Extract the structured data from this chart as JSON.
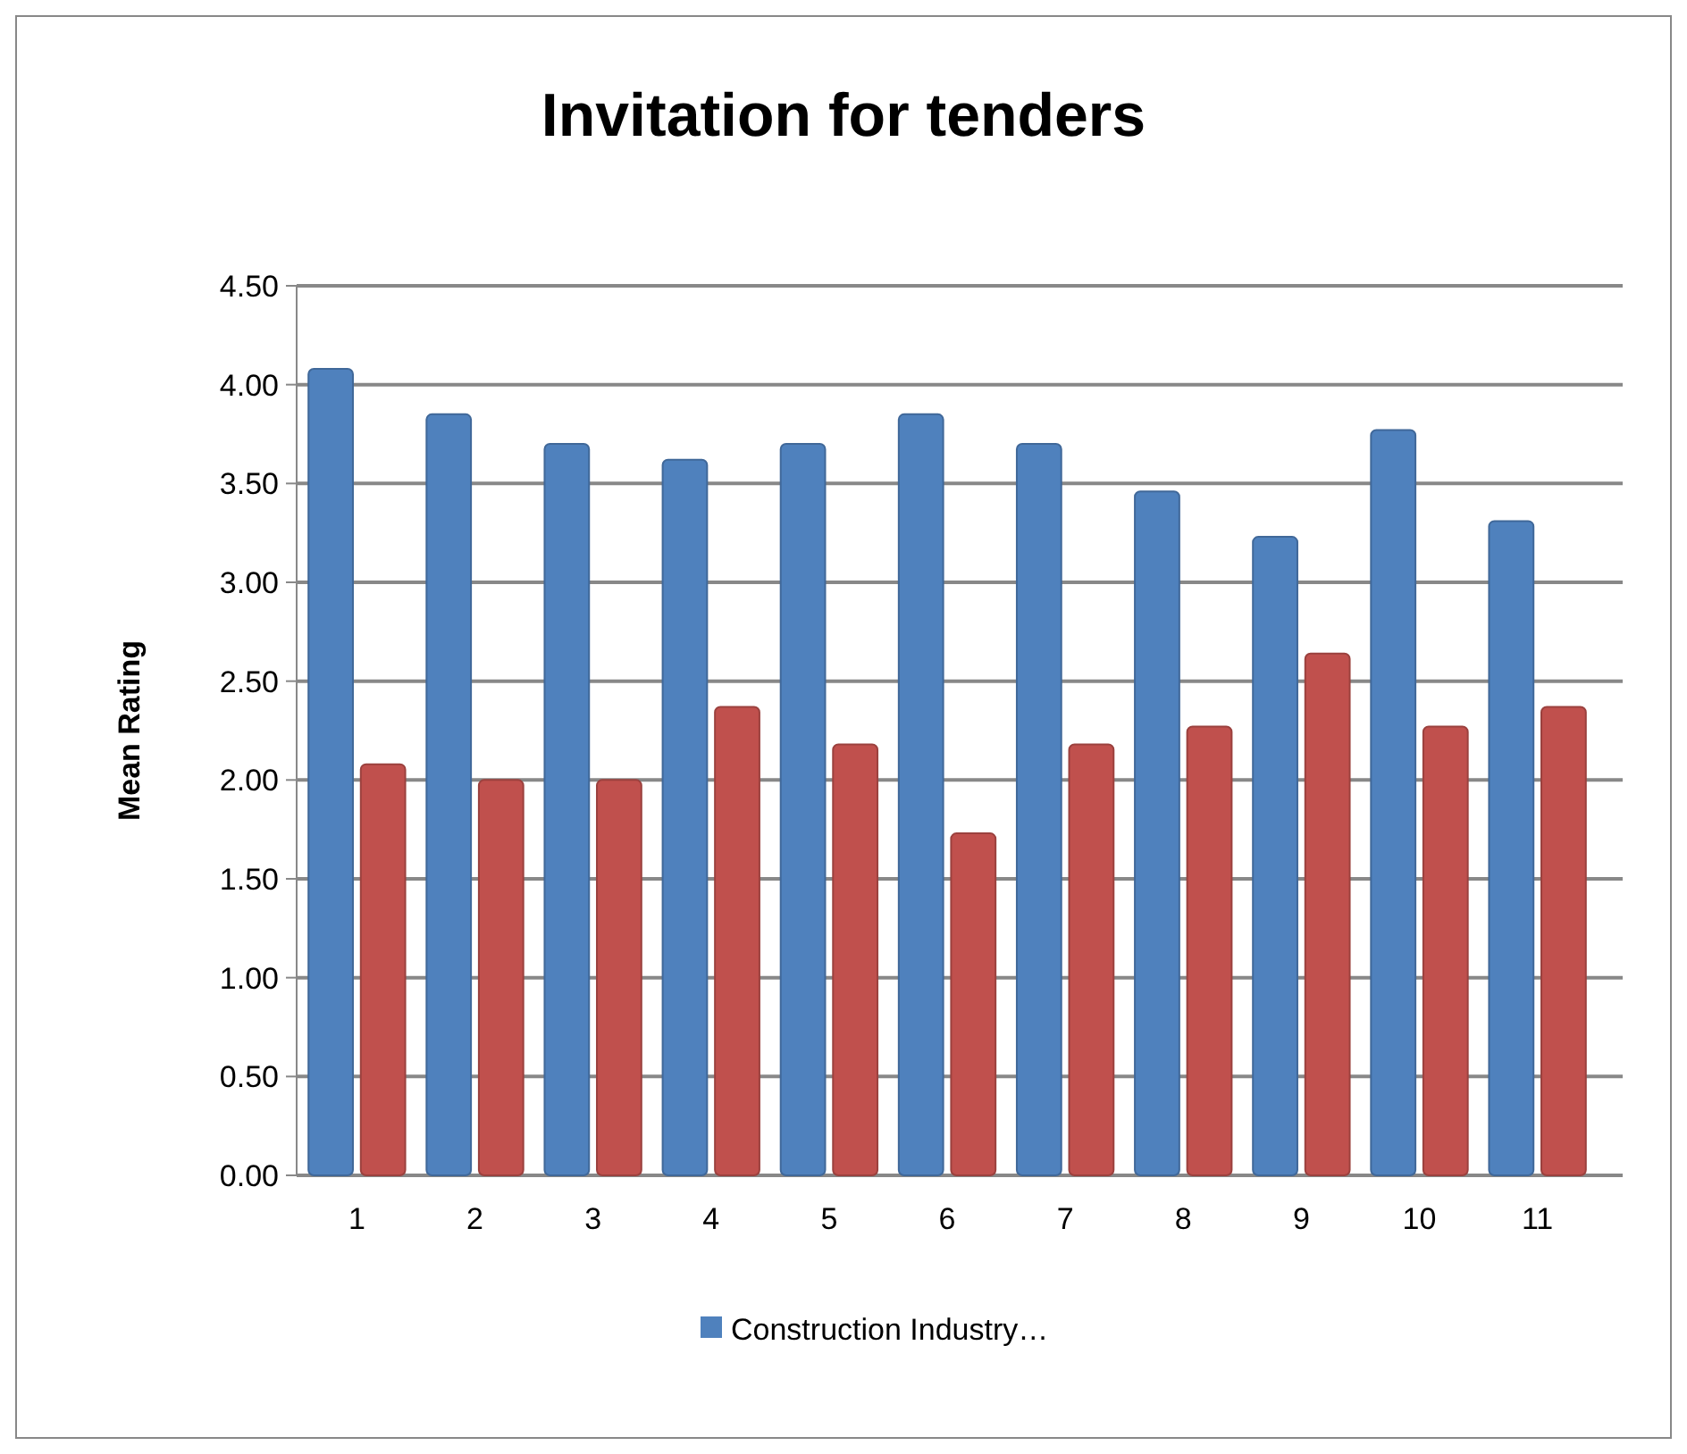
{
  "chart_data": {
    "type": "bar",
    "title": "Invitation for tenders",
    "ylabel": "Mean Rating",
    "categories": [
      "1",
      "2",
      "3",
      "4",
      "5",
      "6",
      "7",
      "8",
      "9",
      "10",
      "11"
    ],
    "series": [
      {
        "name": "Construction Industry…",
        "color": "#4f81bd",
        "values": [
          4.08,
          3.85,
          3.7,
          3.62,
          3.7,
          3.85,
          3.7,
          3.46,
          3.23,
          3.77,
          3.31
        ]
      },
      {
        "color": "#c0504d",
        "values": [
          2.08,
          2.0,
          2.0,
          2.37,
          2.18,
          1.73,
          2.18,
          2.27,
          2.64,
          2.27,
          2.37
        ]
      }
    ],
    "ylim": [
      0,
      4.5
    ],
    "yticks": [
      {
        "value": 0,
        "label": "0.00"
      },
      {
        "value": 0.5,
        "label": "0.50"
      },
      {
        "value": 1,
        "label": "1.00"
      },
      {
        "value": 1.5,
        "label": "1.50"
      },
      {
        "value": 2,
        "label": "2.00"
      },
      {
        "value": 2.5,
        "label": "2.50"
      },
      {
        "value": 3,
        "label": "3.00"
      },
      {
        "value": 3.5,
        "label": "3.50"
      },
      {
        "value": 4,
        "label": "4.00"
      },
      {
        "value": 4.5,
        "label": "4.50"
      }
    ],
    "grid": "y",
    "legend": "bottom"
  }
}
